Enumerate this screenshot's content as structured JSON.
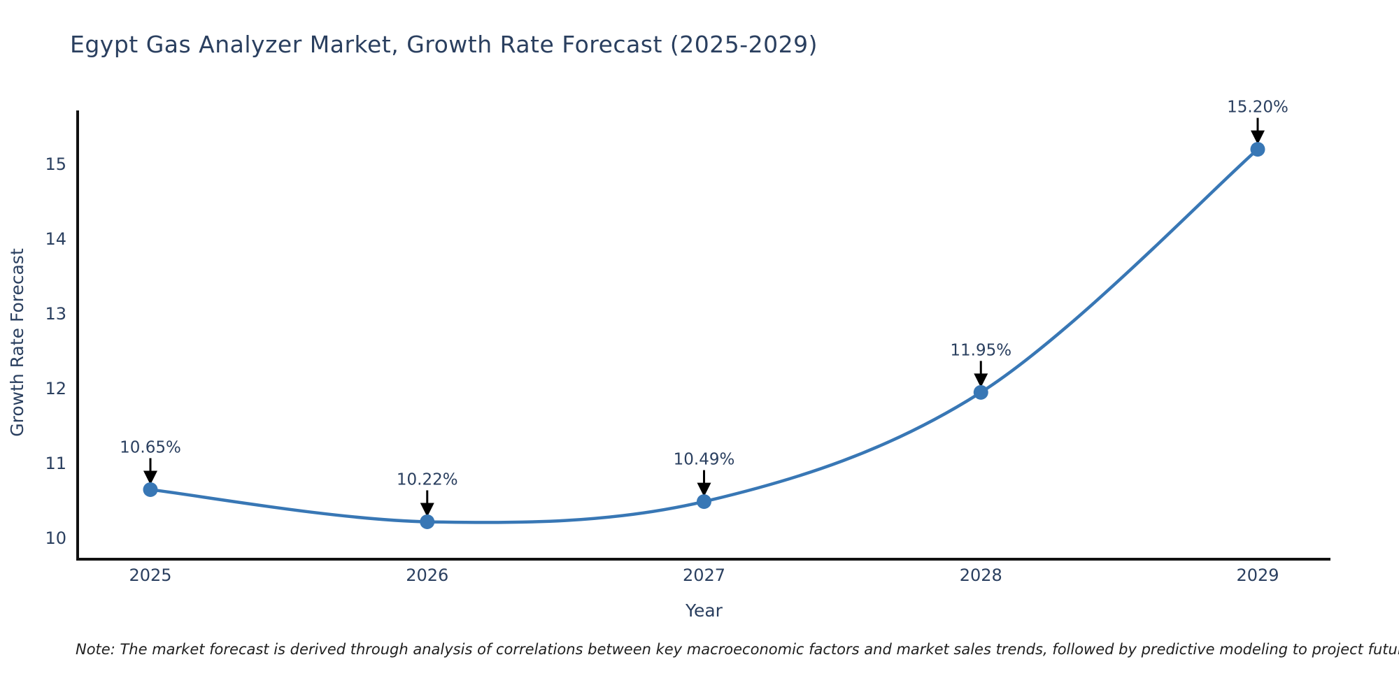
{
  "page": {
    "title": "Egypt Gas Analyzer Market, Growth Rate Forecast (2025-2029)",
    "note": "Note: The market forecast is derived through analysis of correlations between key macroeconomic factors and market sales trends, followed by predictive modeling to project future sales."
  },
  "chart_data": {
    "type": "line",
    "title": "Egypt Gas Analyzer Market, Growth Rate Forecast (2025-2029)",
    "xlabel": "Year",
    "ylabel": "Growth Rate Forecast",
    "categories": [
      2025,
      2026,
      2027,
      2028,
      2029
    ],
    "series": [
      {
        "name": "Growth Rate Forecast",
        "values": [
          10.65,
          10.22,
          10.49,
          11.95,
          15.2
        ]
      }
    ],
    "point_labels": [
      "10.65%",
      "10.22%",
      "10.49%",
      "11.95%",
      "15.20%"
    ],
    "yticks": [
      10,
      11,
      12,
      13,
      14,
      15
    ],
    "ylim": [
      9.7,
      15.7
    ],
    "grid": false,
    "legend_position": "none",
    "line_shape": "spline",
    "colors": {
      "line": "#3877b5",
      "marker": "#3877b5",
      "text": "#2a3f5f",
      "axis": "#111111",
      "annotation_arrow": "#000000",
      "background": "#ffffff"
    }
  }
}
